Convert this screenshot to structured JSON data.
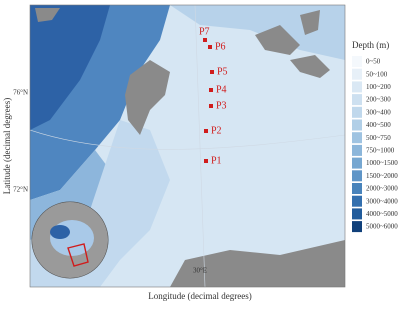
{
  "axes": {
    "x_label": "Longitude (decimal degrees)",
    "y_label": "Latitude (decimal degrees)",
    "lat_ticks": [
      "76°N",
      "72°N"
    ],
    "lon_ticks": [
      "30°E"
    ]
  },
  "stations": [
    "P1",
    "P2",
    "P3",
    "P4",
    "P5",
    "P6",
    "P7"
  ],
  "legend": {
    "title": "Depth (m)",
    "entries": [
      "0~50",
      "50~100",
      "100~200",
      "200~300",
      "300~400",
      "400~500",
      "500~750",
      "750~1000",
      "1000~1500",
      "1500~2000",
      "2000~3000",
      "3000~4000",
      "4000~5000",
      "5000~6000"
    ]
  }
}
